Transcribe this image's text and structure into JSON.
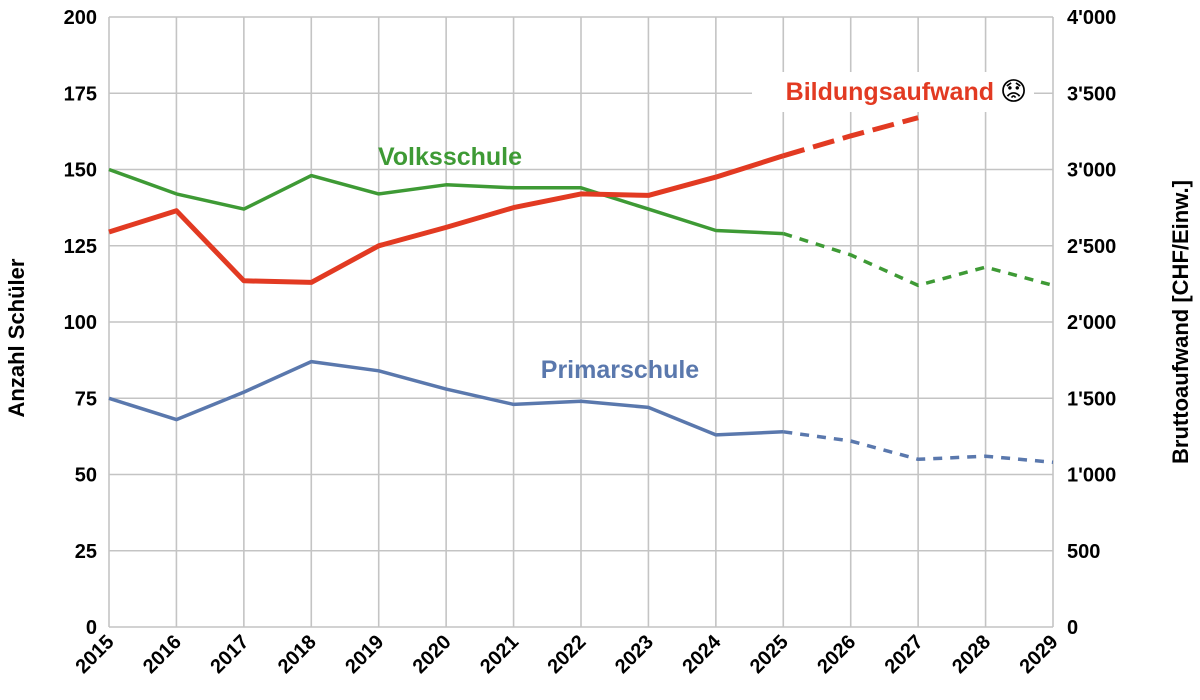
{
  "chart_data": {
    "type": "line",
    "x": [
      2015,
      2016,
      2017,
      2018,
      2019,
      2020,
      2021,
      2022,
      2023,
      2024,
      2025,
      2026,
      2027,
      2028,
      2029
    ],
    "x_tick_labels": [
      "2015",
      "2016",
      "2017",
      "2018",
      "2019",
      "2020",
      "2021",
      "2022",
      "2023",
      "2024",
      "2025",
      "2026",
      "2027",
      "2028",
      "2029"
    ],
    "ylabel": "Anzahl Schüler",
    "y2label": "Bruttoaufwand [CHF/Einw.]",
    "ylim": [
      0,
      200
    ],
    "y2lim": [
      0,
      4000
    ],
    "y_ticks": [
      0,
      25,
      50,
      75,
      100,
      125,
      150,
      175,
      200
    ],
    "y_tick_labels": [
      "0",
      "25",
      "50",
      "75",
      "100",
      "125",
      "150",
      "175",
      "200"
    ],
    "y2_ticks": [
      0,
      500,
      1000,
      1500,
      2000,
      2500,
      3000,
      3500,
      4000
    ],
    "y2_tick_labels": [
      "0",
      "500",
      "1'000",
      "1'500",
      "2'000",
      "2'500",
      "3'000",
      "3'500",
      "4'000"
    ],
    "grid": true,
    "legend": "none (series labelled inline)",
    "series": [
      {
        "key": "volksschule",
        "name": "Volksschule",
        "axis": "left",
        "color": "#3e9a35",
        "x": [
          2015,
          2016,
          2017,
          2018,
          2019,
          2020,
          2021,
          2022,
          2023,
          2024,
          2025,
          2026,
          2027,
          2028,
          2029
        ],
        "values": [
          150,
          142,
          137,
          148,
          142,
          145,
          144,
          144,
          137,
          130,
          129,
          122,
          112,
          118,
          112
        ],
        "forecast_from": 2025
      },
      {
        "key": "primarschule",
        "name": "Primarschule",
        "axis": "left",
        "color": "#5a78ad",
        "x": [
          2015,
          2016,
          2017,
          2018,
          2019,
          2020,
          2021,
          2022,
          2023,
          2024,
          2025,
          2026,
          2027,
          2028,
          2029
        ],
        "values": [
          75,
          68,
          77,
          87,
          84,
          78,
          73,
          74,
          72,
          63,
          64,
          61,
          55,
          56,
          54
        ],
        "forecast_from": 2025
      },
      {
        "key": "bildungsaufwand",
        "name": "Bildungsaufwand",
        "axis": "right",
        "color": "#e23a22",
        "x": [
          2015,
          2016,
          2017,
          2018,
          2019,
          2020,
          2021,
          2022,
          2023,
          2024,
          2025,
          2026,
          2027
        ],
        "values": [
          2590,
          2730,
          2270,
          2260,
          2500,
          2620,
          2750,
          2840,
          2830,
          2950,
          3090,
          3220,
          3340
        ],
        "forecast_from": 2025,
        "annotation_emoji": "😟"
      }
    ]
  }
}
